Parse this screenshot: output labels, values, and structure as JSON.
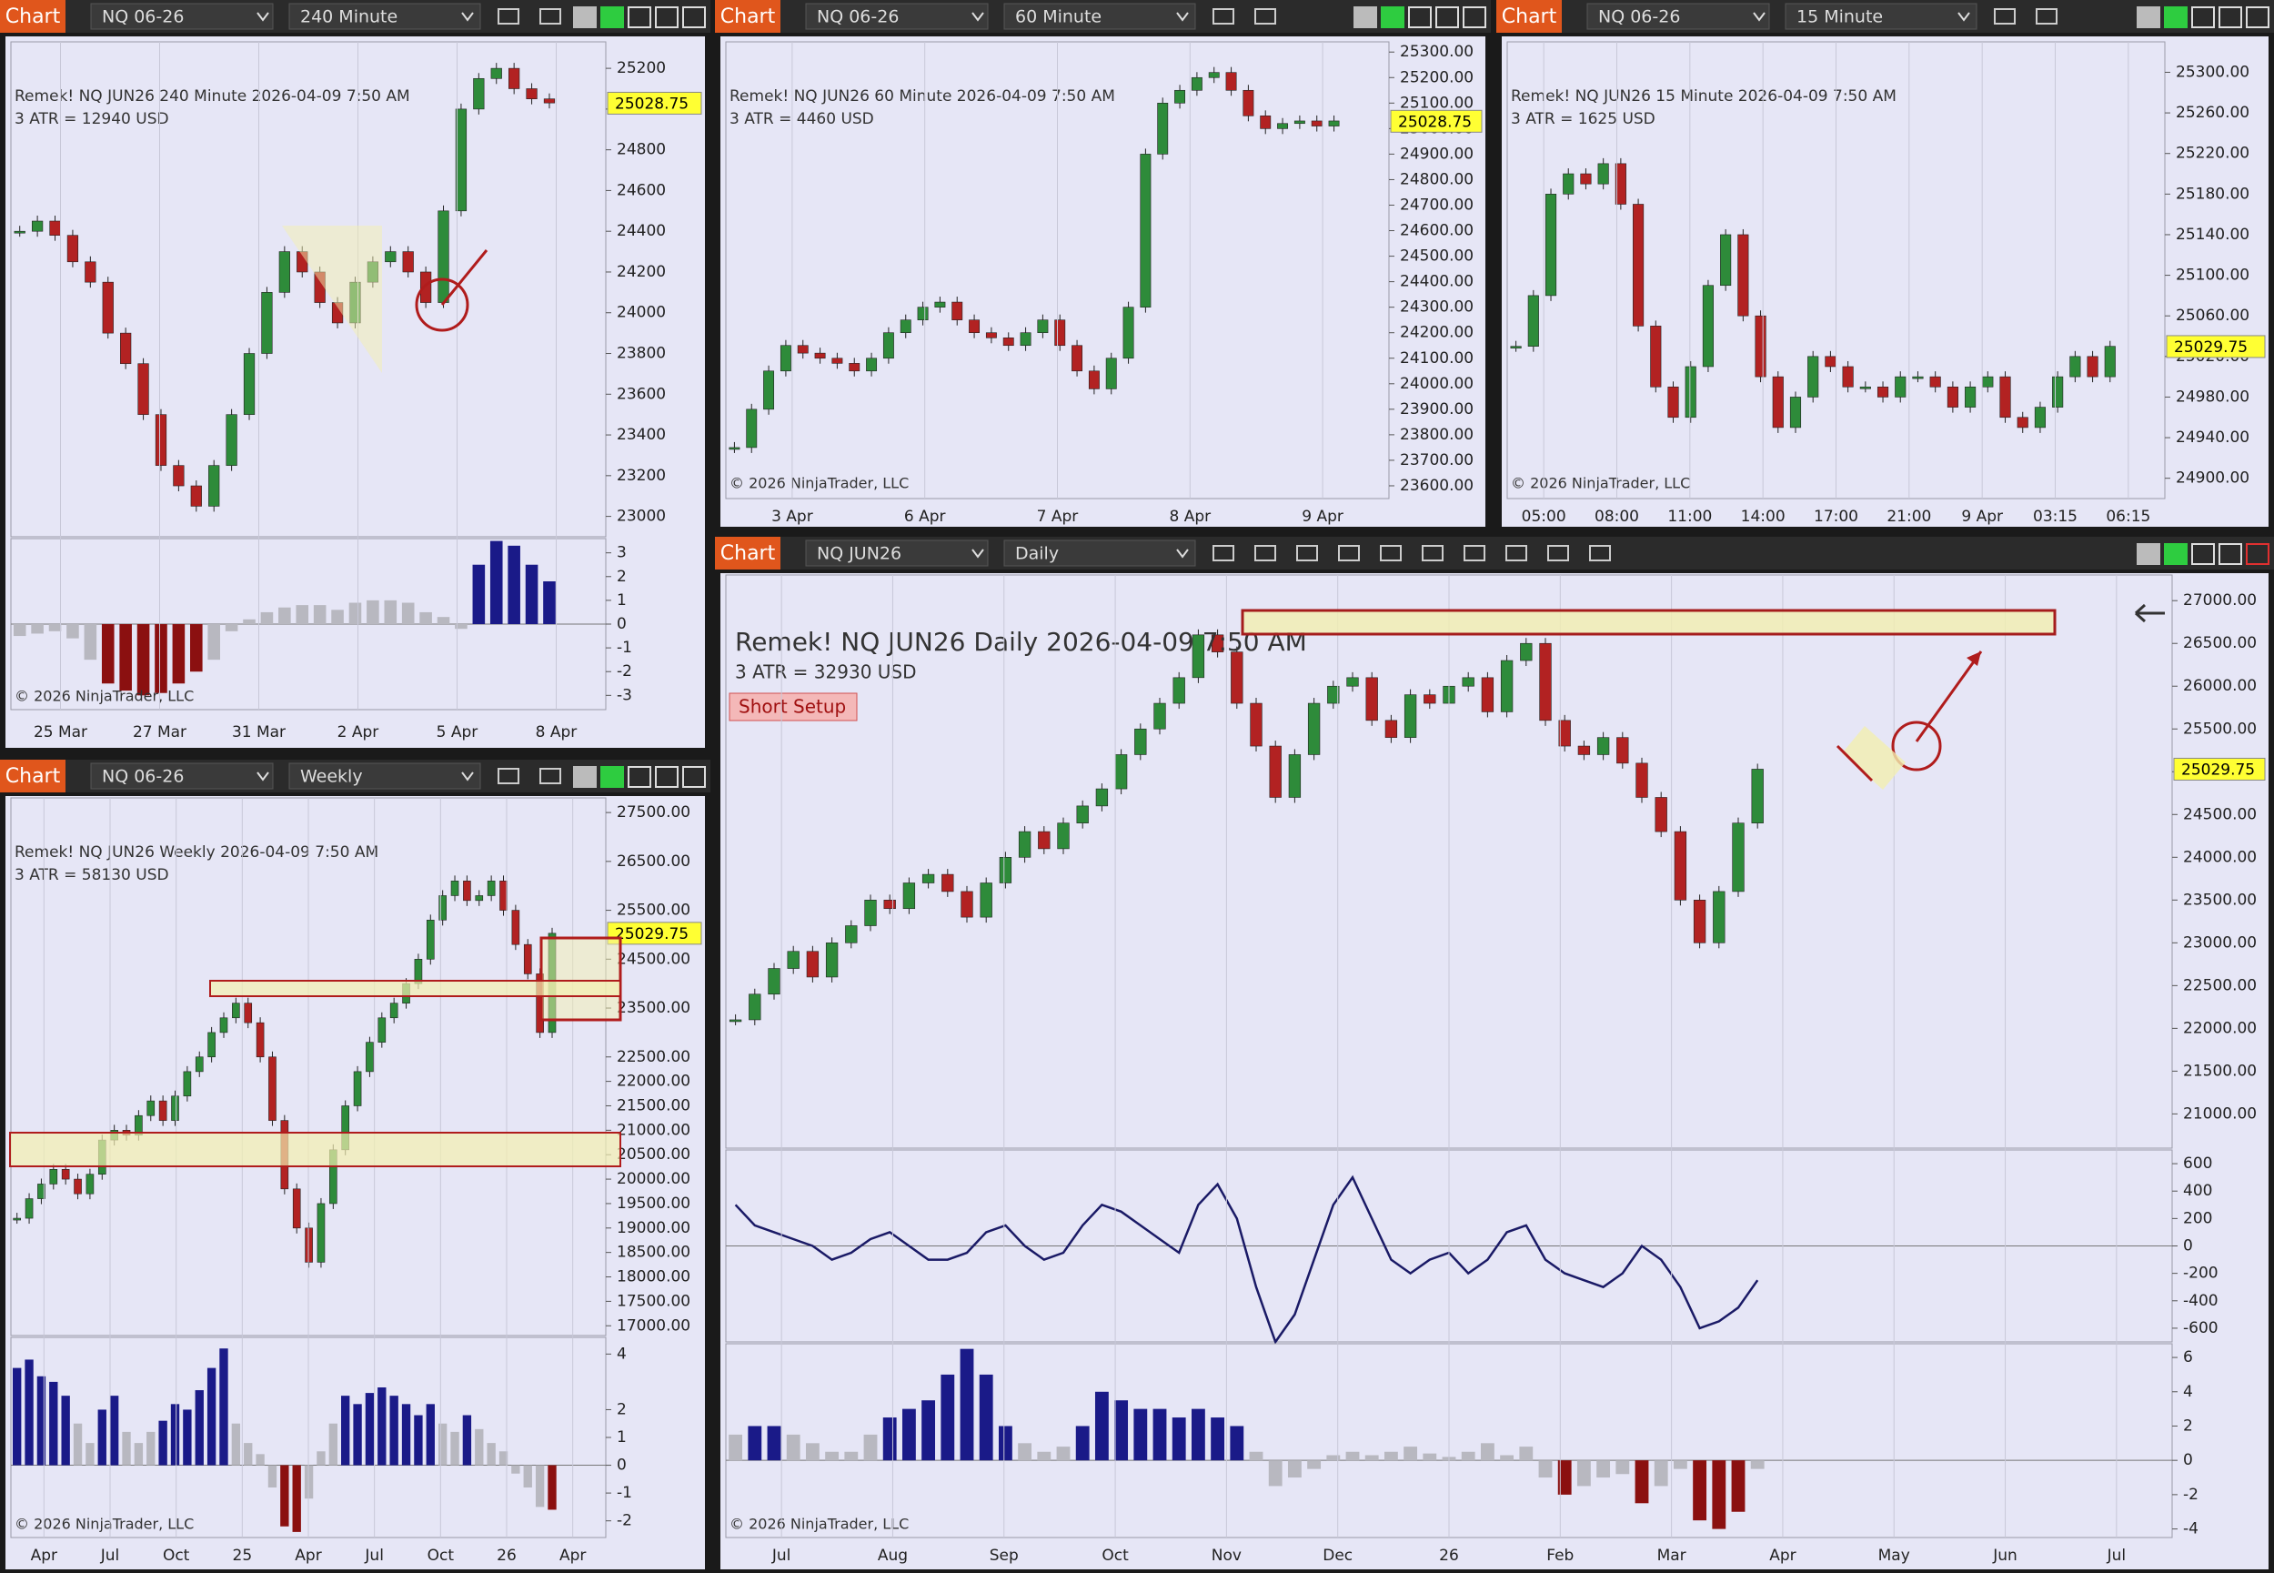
{
  "panels": [
    {
      "chart_label": "Chart",
      "instrument": "NQ 06-26",
      "interval": "240 Minute",
      "title": "Remek!  NQ JUN26  240 Minute  2026-04-09 7:50 AM",
      "atr": "3 ATR = 12940 USD",
      "copyright": "© 2026 NinjaTrader, LLC",
      "last_price": 25028.75,
      "x_labels": [
        "25 Mar",
        "27 Mar",
        "31 Mar",
        "2 Apr",
        "5 Apr",
        "8 Apr"
      ],
      "price": {
        "ylim": [
          22900,
          25330
        ],
        "yticks": [
          25200,
          25000,
          24800,
          24600,
          24400,
          24200,
          24000,
          23800,
          23600,
          23400,
          23200,
          23000
        ],
        "closes": [
          24400,
          24450,
          24380,
          24250,
          24150,
          23900,
          23750,
          23500,
          23250,
          23150,
          23050,
          23250,
          23500,
          23800,
          24100,
          24300,
          24200,
          24050,
          23950,
          24150,
          24250,
          24300,
          24200,
          24050,
          24500,
          25000,
          25150,
          25200,
          25100,
          25050,
          25030
        ]
      },
      "indicator": {
        "ylim": [
          -3.6,
          3.6
        ],
        "yticks": [
          3,
          2,
          1,
          0,
          -1,
          -2,
          -3
        ],
        "values": [
          -0.5,
          -0.4,
          -0.3,
          -0.6,
          -1.5,
          -2.5,
          -2.8,
          -3,
          -2.9,
          -2.5,
          -2,
          -1.5,
          -0.3,
          0.2,
          0.5,
          0.7,
          0.8,
          0.8,
          0.6,
          0.9,
          1,
          1,
          0.9,
          0.5,
          0.3,
          -0.2,
          2.5,
          3.5,
          3.3,
          2.5,
          1.8
        ]
      }
    },
    {
      "chart_label": "Chart",
      "instrument": "NQ 06-26",
      "interval": "60 Minute",
      "title": "Remek!  NQ JUN26  60 Minute  2026-04-09 7:50 AM",
      "atr": "3 ATR = 4460 USD",
      "copyright": "© 2026 NinjaTrader, LLC",
      "last_price": 25028.75,
      "x_labels": [
        "3 Apr",
        "6 Apr",
        "7 Apr",
        "8 Apr",
        "9 Apr"
      ],
      "price": {
        "ylim": [
          23550,
          25340
        ],
        "yticks": [
          {
            "value": 25300,
            "label": "25300.00"
          },
          {
            "value": 25200,
            "label": "25200.00"
          },
          {
            "value": 25100,
            "label": "25100.00"
          },
          {
            "value": 25000,
            "label": "25000.00"
          },
          {
            "value": 24900,
            "label": "24900.00"
          },
          {
            "value": 24800,
            "label": "24800.00"
          },
          {
            "value": 24700,
            "label": "24700.00"
          },
          {
            "value": 24600,
            "label": "24600.00"
          },
          {
            "value": 24500,
            "label": "24500.00"
          },
          {
            "value": 24400,
            "label": "24400.00"
          },
          {
            "value": 24300,
            "label": "24300.00"
          },
          {
            "value": 24200,
            "label": "24200.00"
          },
          {
            "value": 24100,
            "label": "24100.00"
          },
          {
            "value": 24000,
            "label": "24000.00"
          },
          {
            "value": 23900,
            "label": "23900.00"
          },
          {
            "value": 23800,
            "label": "23800.00"
          },
          {
            "value": 23700,
            "label": "23700.00"
          },
          {
            "value": 23600,
            "label": "23600.00"
          }
        ],
        "closes": [
          23750,
          23900,
          24050,
          24150,
          24120,
          24100,
          24080,
          24050,
          24100,
          24200,
          24250,
          24300,
          24320,
          24250,
          24200,
          24180,
          24150,
          24200,
          24250,
          24150,
          24050,
          23980,
          24100,
          24300,
          24900,
          25100,
          25150,
          25200,
          25220,
          25150,
          25050,
          25000,
          25020,
          25030,
          25010,
          25030
        ]
      }
    },
    {
      "chart_label": "Chart",
      "instrument": "NQ 06-26",
      "interval": "15 Minute",
      "title": "Remek!  NQ JUN26  15 Minute  2026-04-09 7:50 AM",
      "atr": "3 ATR = 1625 USD",
      "copyright": "© 2026 NinjaTrader, LLC",
      "last_price": 25029.75,
      "x_labels": [
        "05:00",
        "08:00",
        "11:00",
        "14:00",
        "17:00",
        "21:00",
        "9 Apr",
        "03:15",
        "06:15"
      ],
      "price": {
        "ylim": [
          24880,
          25330
        ],
        "yticks": [
          {
            "value": 25300,
            "label": "25300.00"
          },
          {
            "value": 25260,
            "label": "25260.00"
          },
          {
            "value": 25220,
            "label": "25220.00"
          },
          {
            "value": 25180,
            "label": "25180.00"
          },
          {
            "value": 25140,
            "label": "25140.00"
          },
          {
            "value": 25100,
            "label": "25100.00"
          },
          {
            "value": 25060,
            "label": "25060.00"
          },
          {
            "value": 25020,
            "label": "25020.00"
          },
          {
            "value": 24980,
            "label": "24980.00"
          },
          {
            "value": 24940,
            "label": "24940.00"
          },
          {
            "value": 24900,
            "label": "24900.00"
          }
        ],
        "closes": [
          25030,
          25080,
          25180,
          25200,
          25190,
          25210,
          25170,
          25050,
          24990,
          24960,
          25010,
          25090,
          25140,
          25060,
          25000,
          24950,
          24980,
          25020,
          25010,
          24990,
          24990,
          24980,
          25000,
          25000,
          24990,
          24970,
          24990,
          25000,
          24960,
          24950,
          24970,
          25000,
          25020,
          25000,
          25030
        ]
      }
    },
    {
      "chart_label": "Chart",
      "instrument": "NQ 06-26",
      "interval": "Weekly",
      "title": "Remek!  NQ JUN26  Weekly  2026-04-09 7:50 AM",
      "atr": "3 ATR = 58130 USD",
      "copyright": "© 2026 NinjaTrader, LLC",
      "last_price": 25029.75,
      "x_labels": [
        "Apr",
        "Jul",
        "Oct",
        "25",
        "Apr",
        "Jul",
        "Oct",
        "26",
        "Apr"
      ],
      "price": {
        "ylim": [
          16800,
          27800
        ],
        "yticks": [
          {
            "value": 27500,
            "label": "27500.00"
          },
          {
            "value": 26500,
            "label": "26500.00"
          },
          {
            "value": 25500,
            "label": "25500.00"
          },
          {
            "value": 24500,
            "label": "24500.00"
          },
          {
            "value": 23500,
            "label": "23500.00"
          },
          {
            "value": 22500,
            "label": "22500.00"
          },
          {
            "value": 22000,
            "label": "22000.00"
          },
          {
            "value": 21500,
            "label": "21500.00"
          },
          {
            "value": 21000,
            "label": "21000.00"
          },
          {
            "value": 20500,
            "label": "20500.00"
          },
          {
            "value": 20000,
            "label": "20000.00"
          },
          {
            "value": 19500,
            "label": "19500.00"
          },
          {
            "value": 19000,
            "label": "19000.00"
          },
          {
            "value": 18500,
            "label": "18500.00"
          },
          {
            "value": 18000,
            "label": "18000.00"
          },
          {
            "value": 17500,
            "label": "17500.00"
          },
          {
            "value": 17000,
            "label": "17000.00"
          }
        ],
        "closes": [
          19200,
          19600,
          19900,
          20200,
          20000,
          19700,
          20100,
          20800,
          21000,
          20900,
          21300,
          21600,
          21200,
          21700,
          22200,
          22500,
          23000,
          23300,
          23600,
          23200,
          22500,
          21200,
          19800,
          19000,
          18300,
          19500,
          20600,
          21500,
          22200,
          22800,
          23300,
          23600,
          24000,
          24500,
          25300,
          25800,
          26100,
          25700,
          25800,
          26100,
          25500,
          24800,
          24200,
          23000,
          25030
        ]
      },
      "indicator": {
        "ylim": [
          -2.6,
          4.6
        ],
        "yticks": [
          4,
          2,
          1,
          0,
          -1,
          -2
        ],
        "values": [
          3.5,
          3.8,
          3.2,
          3,
          2.5,
          1.5,
          0.8,
          2,
          2.5,
          1.2,
          0.8,
          1.2,
          1.6,
          2.2,
          2,
          2.7,
          3.5,
          4.2,
          1.5,
          0.8,
          0.4,
          -0.8,
          -2.2,
          -2.4,
          -1.2,
          0.5,
          1.5,
          2.5,
          2.2,
          2.6,
          2.8,
          2.5,
          2.2,
          1.8,
          2.2,
          1.5,
          1.2,
          1.8,
          1.3,
          0.8,
          0.5,
          -0.3,
          -0.8,
          -1.5,
          -1.6
        ]
      }
    },
    {
      "chart_label": "Chart",
      "instrument": "NQ JUN26",
      "interval": "Daily",
      "title": "Remek!  NQ JUN26  Daily  2026-04-09 7:50 AM",
      "atr": "3 ATR = 32930 USD",
      "copyright": "© 2026 NinjaTrader, LLC",
      "setup_label": "Short Setup",
      "last_price": 25029.75,
      "x_labels": [
        "Jul",
        "Aug",
        "Sep",
        "Oct",
        "Nov",
        "Dec",
        "26",
        "Feb",
        "Mar",
        "Apr",
        "May",
        "Jun",
        "Jul"
      ],
      "price": {
        "ylim": [
          20600,
          27300
        ],
        "yticks": [
          {
            "value": 27000,
            "label": "27000.00"
          },
          {
            "value": 26500,
            "label": "26500.00"
          },
          {
            "value": 26000,
            "label": "26000.00"
          },
          {
            "value": 25500,
            "label": "25500.00"
          },
          {
            "value": 25000,
            "label": "25000.00"
          },
          {
            "value": 24500,
            "label": "24500.00"
          },
          {
            "value": 24000,
            "label": "24000.00"
          },
          {
            "value": 23500,
            "label": "23500.00"
          },
          {
            "value": 23000,
            "label": "23000.00"
          },
          {
            "value": 22500,
            "label": "22500.00"
          },
          {
            "value": 22000,
            "label": "22000.00"
          },
          {
            "value": 21500,
            "label": "21500.00"
          },
          {
            "value": 21000,
            "label": "21000.00"
          }
        ],
        "closes": [
          22100,
          22400,
          22700,
          22900,
          22600,
          23000,
          23200,
          23500,
          23400,
          23700,
          23800,
          23600,
          23300,
          23700,
          24000,
          24300,
          24100,
          24400,
          24600,
          24800,
          25200,
          25500,
          25800,
          26100,
          26600,
          26400,
          25800,
          25300,
          24700,
          25200,
          25800,
          26000,
          26100,
          25600,
          25400,
          25900,
          25800,
          26000,
          26100,
          25700,
          26300,
          26500,
          25600,
          25300,
          25200,
          25400,
          25100,
          24700,
          24300,
          23500,
          23000,
          23600,
          24400,
          25030
        ]
      },
      "oscillator": {
        "ylim": [
          -700,
          700
        ],
        "yticks": [
          600,
          400,
          200,
          0,
          -200,
          -400,
          -600
        ],
        "values": [
          300,
          150,
          100,
          50,
          0,
          -100,
          -50,
          50,
          100,
          0,
          -100,
          -100,
          -50,
          100,
          150,
          0,
          -100,
          -50,
          150,
          300,
          250,
          150,
          50,
          -50,
          300,
          450,
          200,
          -300,
          -700,
          -500,
          -100,
          300,
          500,
          200,
          -100,
          -200,
          -100,
          -50,
          -200,
          -100,
          100,
          150,
          -100,
          -200,
          -250,
          -300,
          -200,
          0,
          -100,
          -300,
          -600,
          -550,
          -450,
          -250
        ]
      },
      "indicator": {
        "ylim": [
          -4.5,
          6.8
        ],
        "yticks": [
          6,
          4,
          2,
          0,
          -2,
          -4
        ],
        "values": [
          1.5,
          2,
          2,
          1.5,
          1,
          0.5,
          0.5,
          1.5,
          2.5,
          3,
          3.5,
          5,
          6.5,
          5,
          2,
          1,
          0.5,
          0.8,
          2,
          4,
          3.5,
          3,
          3,
          2.5,
          3,
          2.5,
          2,
          0.5,
          -1.5,
          -1,
          -0.5,
          0.3,
          0.5,
          0.3,
          0.5,
          0.8,
          0.4,
          0.2,
          0.5,
          1,
          0.3,
          0.8,
          -1,
          -2,
          -1.5,
          -1,
          -0.8,
          -2.5,
          -1.5,
          -0.5,
          -3.5,
          -4,
          -3,
          -0.5
        ]
      }
    }
  ]
}
